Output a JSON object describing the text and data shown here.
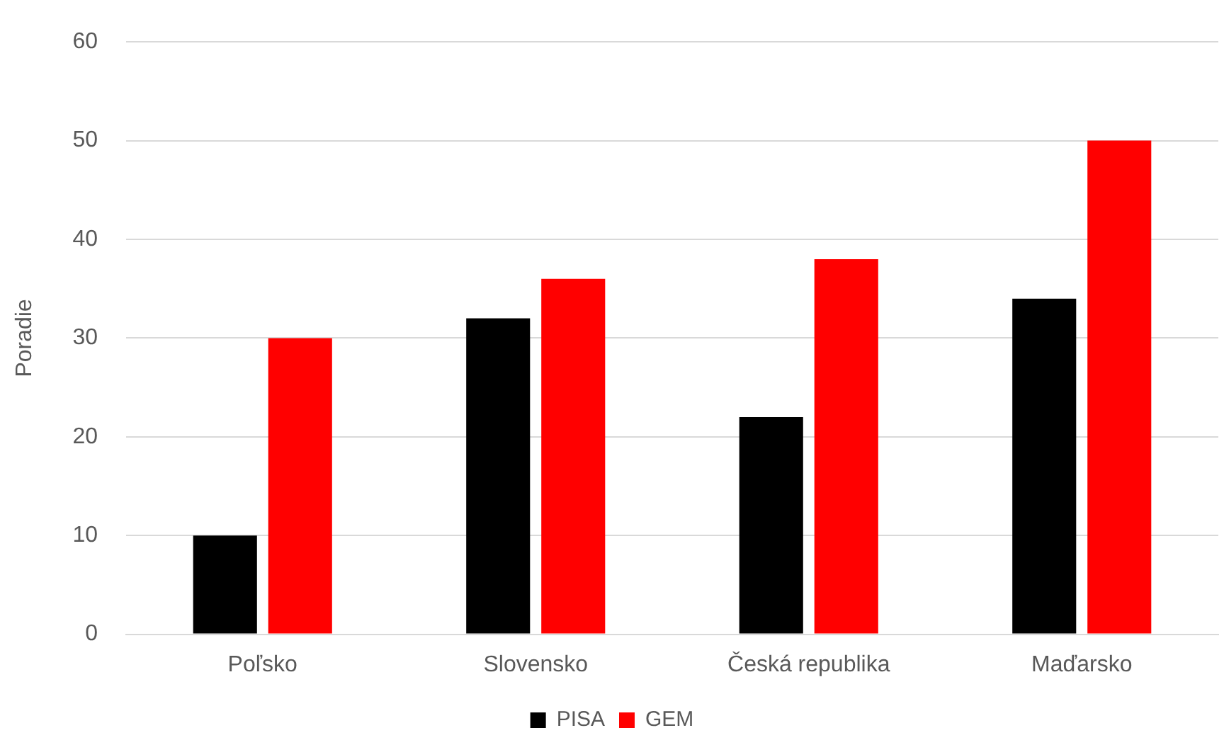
{
  "chart_data": {
    "type": "bar",
    "ylabel": "Poradie",
    "categories": [
      "Poľsko",
      "Slovensko",
      "Česká republika",
      "Maďarsko"
    ],
    "series": [
      {
        "name": "PISA",
        "color": "#000000",
        "values": [
          10,
          32,
          22,
          34
        ]
      },
      {
        "name": "GEM",
        "color": "#ff0000",
        "values": [
          30,
          36,
          38,
          50
        ]
      }
    ],
    "ylim": [
      0,
      60
    ],
    "yticks": [
      0,
      10,
      20,
      30,
      40,
      50,
      60
    ],
    "grid": "y",
    "legend": "bottom"
  }
}
